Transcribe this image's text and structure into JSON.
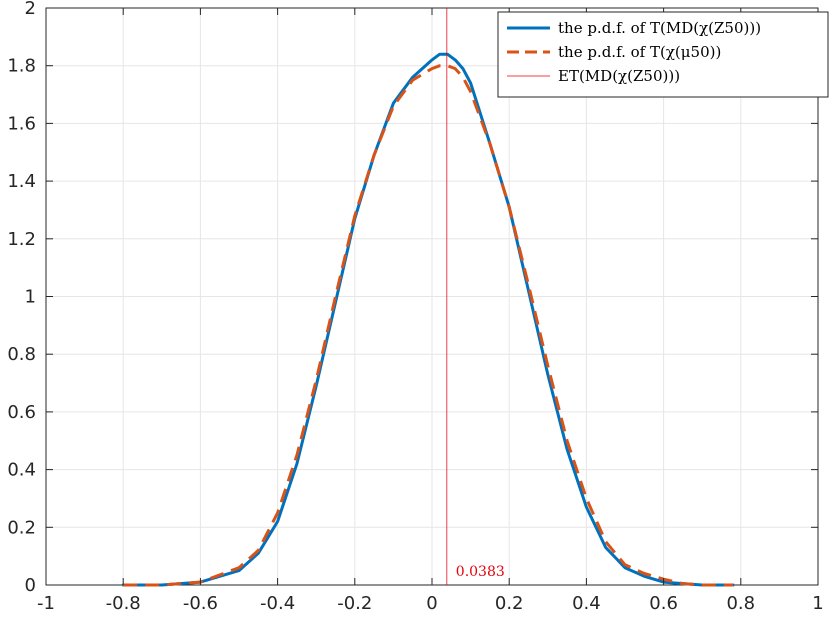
{
  "chart_data": {
    "type": "line",
    "xlim": [
      -1,
      1
    ],
    "ylim": [
      0,
      2
    ],
    "xticks": [
      -1,
      -0.8,
      -0.6,
      -0.4,
      -0.2,
      0,
      0.2,
      0.4,
      0.6,
      0.8,
      1
    ],
    "yticks": [
      0,
      0.2,
      0.4,
      0.6,
      0.8,
      1,
      1.2,
      1.4,
      1.6,
      1.8,
      2
    ],
    "xtick_labels": [
      "-1",
      "-0.8",
      "-0.6",
      "-0.4",
      "-0.2",
      "0",
      "0.2",
      "0.4",
      "0.6",
      "0.8",
      "1"
    ],
    "ytick_labels": [
      "0",
      "0.2",
      "0.4",
      "0.6",
      "0.8",
      "1",
      "1.2",
      "1.4",
      "1.6",
      "1.8",
      "2"
    ],
    "grid": true,
    "legend_position": "top-right",
    "series": [
      {
        "name": "the p.d.f. of T(MD(χ(Z50)))",
        "color": "#0072bd",
        "style": "solid",
        "x": [
          -0.8,
          -0.7,
          -0.6,
          -0.5,
          -0.45,
          -0.4,
          -0.35,
          -0.3,
          -0.25,
          -0.2,
          -0.15,
          -0.1,
          -0.05,
          0,
          0.02,
          0.04,
          0.06,
          0.08,
          0.1,
          0.15,
          0.2,
          0.25,
          0.3,
          0.35,
          0.4,
          0.45,
          0.5,
          0.55,
          0.6,
          0.65,
          0.7,
          0.78
        ],
        "y": [
          0,
          0,
          0.01,
          0.05,
          0.11,
          0.22,
          0.42,
          0.69,
          0.98,
          1.27,
          1.49,
          1.67,
          1.76,
          1.82,
          1.84,
          1.84,
          1.82,
          1.79,
          1.74,
          1.53,
          1.31,
          1.02,
          0.73,
          0.47,
          0.27,
          0.13,
          0.06,
          0.03,
          0.01,
          0.005,
          0,
          0
        ]
      },
      {
        "name": "the p.d.f. of T(χ(μ50))",
        "color": "#d95319",
        "style": "dashed",
        "x": [
          -0.8,
          -0.7,
          -0.6,
          -0.5,
          -0.45,
          -0.4,
          -0.35,
          -0.3,
          -0.25,
          -0.2,
          -0.15,
          -0.1,
          -0.05,
          0,
          0.02,
          0.04,
          0.06,
          0.08,
          0.1,
          0.15,
          0.2,
          0.25,
          0.3,
          0.35,
          0.4,
          0.45,
          0.5,
          0.55,
          0.6,
          0.65,
          0.7,
          0.78
        ],
        "y": [
          0,
          0,
          0.01,
          0.06,
          0.12,
          0.25,
          0.45,
          0.71,
          1.0,
          1.28,
          1.49,
          1.66,
          1.75,
          1.79,
          1.8,
          1.8,
          1.79,
          1.76,
          1.71,
          1.53,
          1.31,
          1.04,
          0.76,
          0.5,
          0.3,
          0.15,
          0.07,
          0.04,
          0.02,
          0.005,
          0,
          0
        ]
      },
      {
        "name": "ET(MD(χ(Z50)))",
        "color": "#e8000b",
        "style": "vertical-line",
        "x": [
          0.0383,
          0.0383
        ],
        "y": [
          0,
          2
        ]
      }
    ],
    "annotations": [
      {
        "text": "0.0383",
        "x": 0.0383,
        "y": 0,
        "color": "#e8000b"
      }
    ]
  },
  "legend": {
    "entries": [
      "the p.d.f. of T(MD(χ(Z50)))",
      "the p.d.f. of T(χ(μ50))",
      "ET(MD(χ(Z50)))"
    ]
  }
}
